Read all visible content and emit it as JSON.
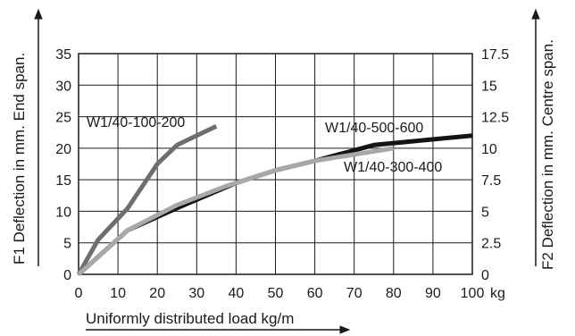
{
  "chart_data": {
    "type": "line",
    "xlabel": "Uniformly distributed load kg/m",
    "x_unit": "kg",
    "ylabel_left": "F1 Deflection in mm. End span.",
    "ylabel_right": "F2 Deflection in mm. Centre span.",
    "xlim": [
      0,
      100
    ],
    "ylim_left": [
      0,
      35
    ],
    "ylim_right": [
      0,
      17.5
    ],
    "x_ticks": [
      "0",
      "10",
      "20",
      "30",
      "40",
      "50",
      "60",
      "70",
      "80",
      "90",
      "100"
    ],
    "y_ticks_left": [
      "0",
      "5",
      "10",
      "15",
      "20",
      "25",
      "30",
      "35"
    ],
    "y_ticks_right": [
      "0",
      "2.5",
      "5",
      "7.5",
      "10",
      "12.5",
      "15",
      "17.5"
    ],
    "grid": true,
    "series": [
      {
        "name": "W1/40-100-200",
        "color": "#6e6e6e",
        "points": [
          [
            0,
            0
          ],
          [
            5,
            5.5
          ],
          [
            12.5,
            10.5
          ],
          [
            20,
            17.5
          ],
          [
            25,
            20.5
          ],
          [
            35,
            23.5
          ]
        ]
      },
      {
        "name": "W1/40-500-600",
        "color": "#141414",
        "points": [
          [
            0,
            0
          ],
          [
            12.5,
            7
          ],
          [
            25,
            10.5
          ],
          [
            40,
            14.5
          ],
          [
            50,
            16.5
          ],
          [
            60,
            18
          ],
          [
            75,
            20.5
          ],
          [
            100,
            22
          ]
        ]
      },
      {
        "name": "W1/40-300-400",
        "color": "#a8a8a8",
        "points": [
          [
            0,
            0
          ],
          [
            12.5,
            7
          ],
          [
            25,
            11
          ],
          [
            37.5,
            14
          ],
          [
            50,
            16.5
          ],
          [
            60,
            18
          ],
          [
            70,
            19
          ],
          [
            80,
            20
          ]
        ]
      }
    ]
  }
}
